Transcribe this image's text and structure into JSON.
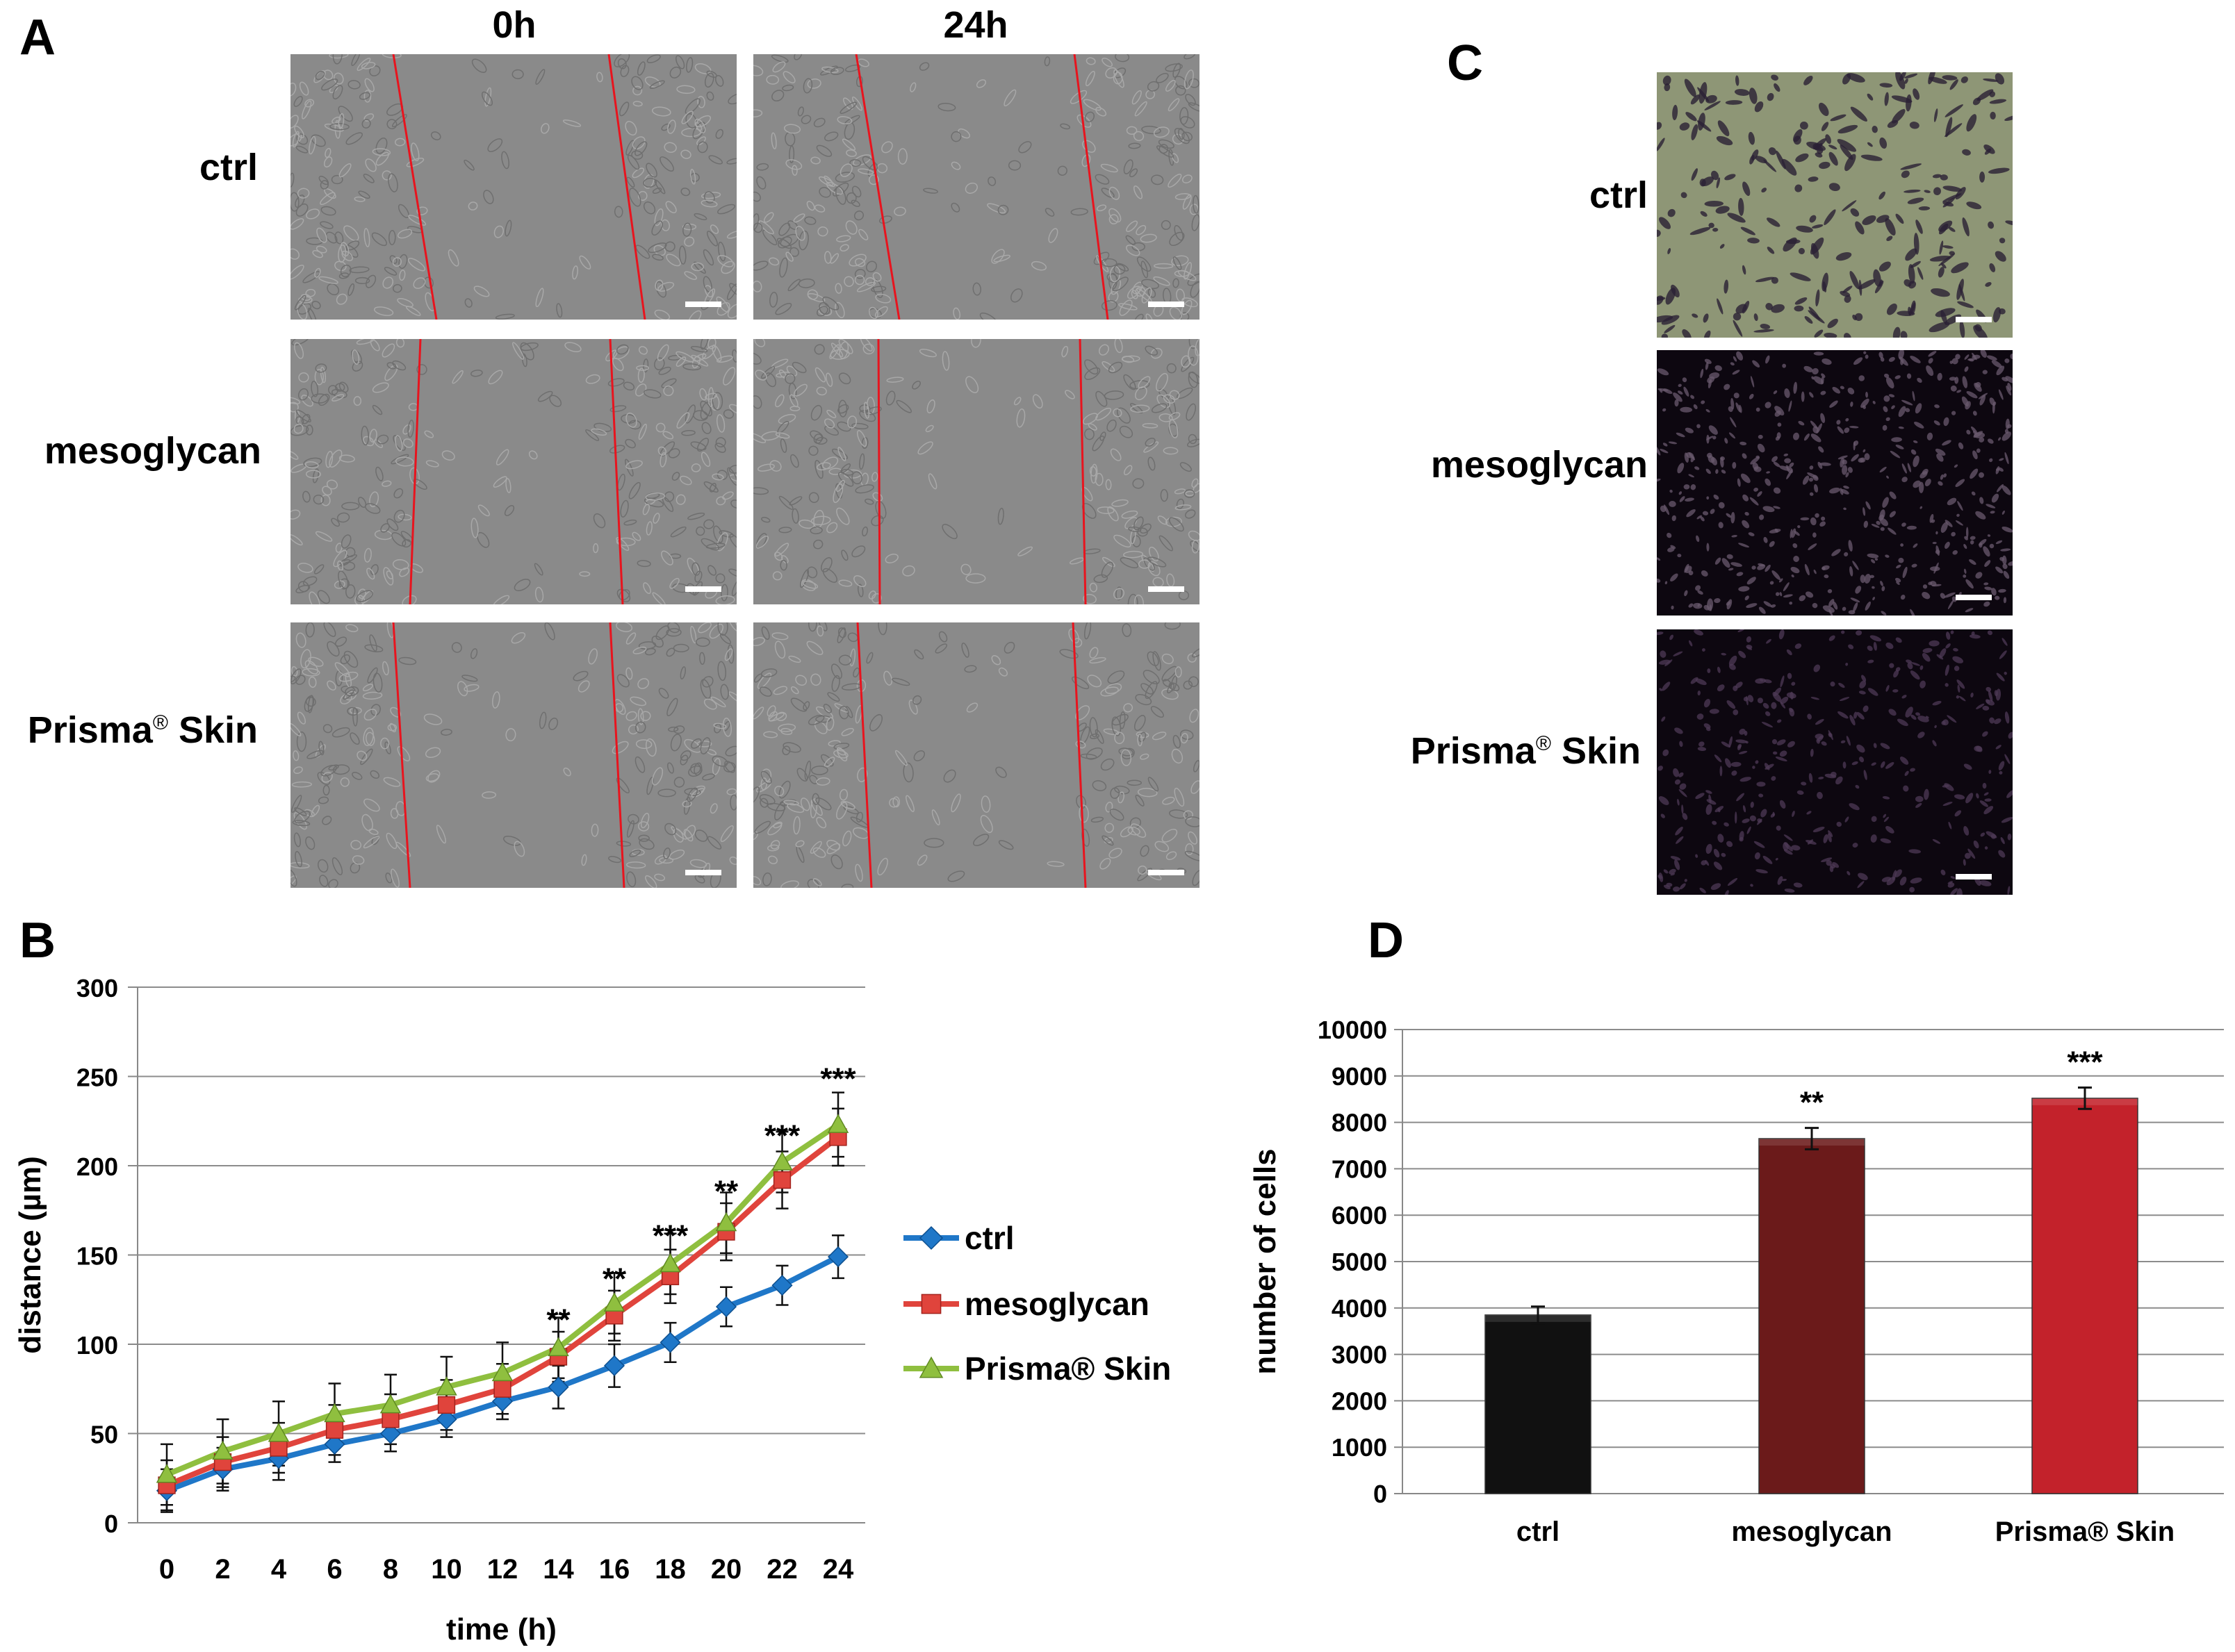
{
  "figure": {
    "panel_a": {
      "letter": "A",
      "columns": [
        "0h",
        "24h"
      ],
      "rows": [
        "ctrl",
        "mesoglycan",
        "Prisma",
        "Skin"
      ],
      "registered_mark": "®"
    },
    "panel_b_letter": "B",
    "panel_c": {
      "letter": "C",
      "rows": [
        "ctrl",
        "mesoglycan",
        "Prisma",
        "Skin"
      ],
      "registered_mark": "®"
    },
    "panel_d_letter": "D",
    "colors": {
      "ctrl_series": "#1f77c8",
      "mesoglycan_series": "#e0443c",
      "prisma_series": "#8fbf3f",
      "bar_ctrl": "#111111",
      "bar_mesoglycan": "#6b1a1a",
      "bar_prisma": "#c3222b",
      "scratch_line": "#e8141e",
      "micro_bg": "#8a8a8a",
      "stain_bg": "#8e9676",
      "dark_bg": "#0d0710"
    }
  },
  "chart_data": [
    {
      "type": "line",
      "title": "",
      "xlabel": "time (h)",
      "ylabel": "distance (µm)",
      "x": [
        0,
        2,
        4,
        6,
        8,
        10,
        12,
        14,
        16,
        18,
        20,
        22,
        24
      ],
      "x_tick_labels": [
        "0",
        "2",
        "4",
        "6",
        "8",
        "10",
        "12",
        "14",
        "16",
        "18",
        "20",
        "22",
        "24"
      ],
      "ylim": [
        0,
        300
      ],
      "y_ticks": [
        0,
        50,
        100,
        150,
        200,
        250,
        300
      ],
      "y_tick_labels": [
        "0",
        "50",
        "100",
        "150",
        "200",
        "250",
        "300"
      ],
      "grid": true,
      "legend_position": "right",
      "series": [
        {
          "name": "ctrl",
          "marker": "diamond",
          "values": [
            18,
            30,
            36,
            44,
            50,
            58,
            68,
            76,
            88,
            101,
            121,
            133,
            149
          ],
          "errors": [
            12,
            12,
            12,
            10,
            10,
            10,
            10,
            12,
            12,
            11,
            11,
            11,
            12
          ]
        },
        {
          "name": "mesoglycan",
          "marker": "square",
          "values": [
            21,
            34,
            42,
            52,
            58,
            66,
            75,
            93,
            116,
            138,
            163,
            192,
            216
          ],
          "errors": [
            14,
            14,
            14,
            14,
            14,
            14,
            14,
            14,
            14,
            15,
            16,
            16,
            16
          ]
        },
        {
          "name": "Prisma® Skin",
          "marker": "triangle",
          "values": [
            27,
            40,
            50,
            61,
            66,
            76,
            84,
            98,
            123,
            145,
            168,
            202,
            223
          ],
          "errors": [
            17,
            18,
            18,
            17,
            17,
            17,
            17,
            17,
            17,
            17,
            17,
            17,
            18
          ]
        }
      ],
      "annotations": [
        {
          "x": 14,
          "y": 108,
          "text": "**"
        },
        {
          "x": 16,
          "y": 131,
          "text": "**"
        },
        {
          "x": 18,
          "y": 155,
          "text": "***"
        },
        {
          "x": 20,
          "y": 180,
          "text": "**"
        },
        {
          "x": 22,
          "y": 211,
          "text": "***"
        },
        {
          "x": 24,
          "y": 243,
          "text": "***"
        }
      ]
    },
    {
      "type": "bar",
      "title": "",
      "xlabel": "",
      "ylabel": "number of cells",
      "categories": [
        "ctrl",
        "mesoglycan",
        "Prisma® Skin"
      ],
      "values": [
        3850,
        7650,
        8520
      ],
      "errors": [
        180,
        230,
        230
      ],
      "ylim": [
        0,
        10000
      ],
      "y_ticks": [
        0,
        1000,
        2000,
        3000,
        4000,
        5000,
        6000,
        7000,
        8000,
        9000,
        10000
      ],
      "y_tick_labels": [
        "0",
        "1000",
        "2000",
        "3000",
        "4000",
        "5000",
        "6000",
        "7000",
        "8000",
        "9000",
        "10000"
      ],
      "grid": true,
      "annotations": [
        "",
        "**",
        "***"
      ]
    }
  ]
}
